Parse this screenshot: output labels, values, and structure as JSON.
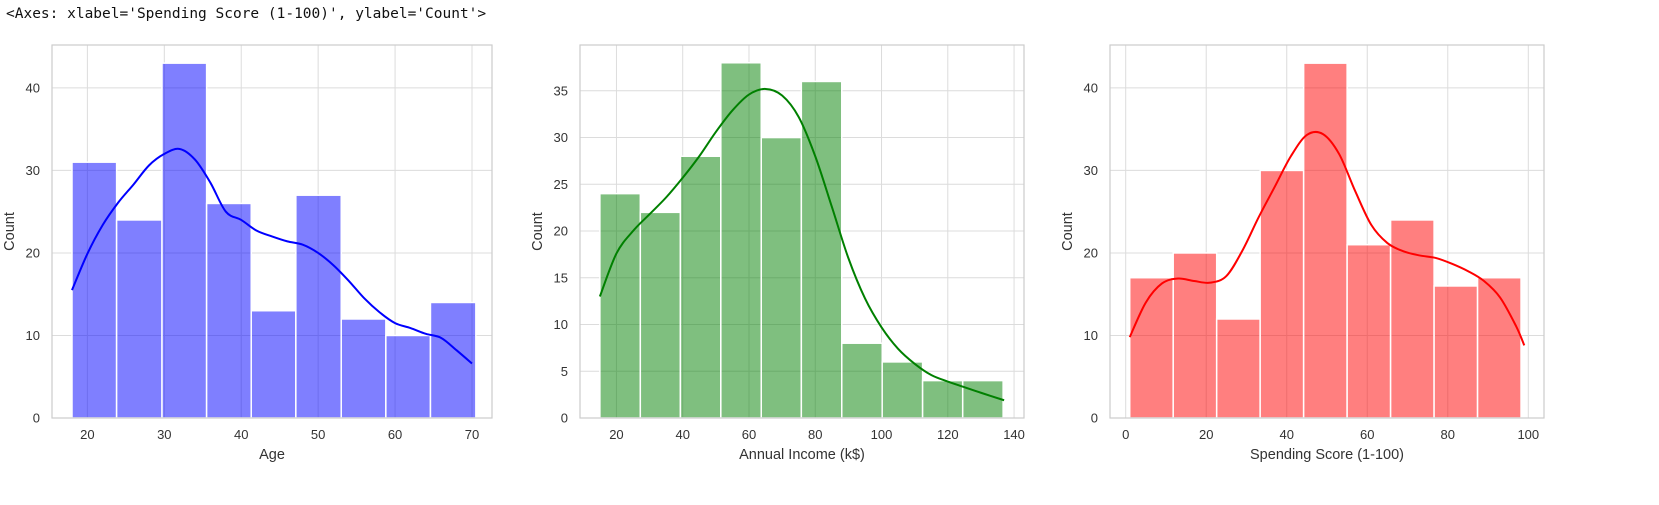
{
  "output_repr": "<Axes: xlabel='Spending Score (1-100)', ylabel='Count'>",
  "chart_data": [
    {
      "type": "bar",
      "subtype": "histogram_with_kde",
      "xlabel": "Age",
      "ylabel": "Count",
      "xlim": [
        15.4,
        72.6
      ],
      "ylim": [
        0,
        45.2
      ],
      "xticks": [
        20,
        30,
        40,
        50,
        60,
        70
      ],
      "yticks": [
        0,
        10,
        20,
        30,
        40
      ],
      "grid": true,
      "bar_color": "#0000ff",
      "kde_color": "#0000ff",
      "bin_edges": [
        18,
        23.8,
        29.7,
        35.5,
        41.3,
        47.1,
        53,
        58.8,
        64.6,
        70.5
      ],
      "values": [
        31,
        24,
        43,
        26,
        13,
        27,
        12,
        10,
        14
      ],
      "kde": {
        "x": [
          18,
          20,
          22,
          24,
          26,
          28,
          30,
          32,
          34,
          36,
          38,
          40,
          42,
          44,
          46,
          48,
          50,
          52,
          54,
          56,
          58,
          60,
          62,
          64,
          66,
          68,
          70
        ],
        "y": [
          15.5,
          19.9,
          23.4,
          26.1,
          28.3,
          30.6,
          32.0,
          32.6,
          31.3,
          28.5,
          25.0,
          24.0,
          22.7,
          22.0,
          21.4,
          21.0,
          20.0,
          18.5,
          16.6,
          14.5,
          12.8,
          11.5,
          10.9,
          10.2,
          9.7,
          8.2,
          6.6
        ]
      }
    },
    {
      "type": "bar",
      "subtype": "histogram_with_kde",
      "xlabel": "Annual Income (k$)",
      "ylabel": "Count",
      "xlim": [
        9.0,
        143.0
      ],
      "ylim": [
        0,
        39.9
      ],
      "xticks": [
        20,
        40,
        60,
        80,
        100,
        120,
        140
      ],
      "yticks": [
        0,
        5,
        10,
        15,
        20,
        25,
        30,
        35
      ],
      "grid": true,
      "bar_color": "#008000",
      "kde_color": "#008000",
      "bin_edges": [
        15,
        27.2,
        39.3,
        51.5,
        63.7,
        75.8,
        88,
        100.2,
        112.4,
        124.5,
        136.7
      ],
      "values": [
        24,
        22,
        28,
        38,
        30,
        36,
        8,
        6,
        4,
        4
      ],
      "kde": {
        "x": [
          15,
          20,
          25,
          30,
          35,
          40,
          45,
          50,
          55,
          60,
          65,
          70,
          75,
          80,
          85,
          90,
          95,
          100,
          105,
          110,
          115,
          120,
          125,
          130,
          137
        ],
        "y": [
          13.0,
          17.6,
          20.0,
          21.8,
          23.6,
          25.7,
          28.0,
          30.6,
          32.9,
          34.6,
          35.2,
          34.5,
          32.2,
          28.0,
          22.6,
          17.1,
          12.8,
          9.7,
          7.4,
          5.8,
          4.6,
          3.9,
          3.3,
          2.7,
          1.9
        ]
      }
    },
    {
      "type": "bar",
      "subtype": "histogram_with_kde",
      "xlabel": "Spending Score (1-100)",
      "ylabel": "Count",
      "xlim": [
        -3.9,
        103.9
      ],
      "ylim": [
        0,
        45.2
      ],
      "xticks": [
        0,
        20,
        40,
        60,
        80,
        100
      ],
      "yticks": [
        0,
        10,
        20,
        30,
        40
      ],
      "grid": true,
      "bar_color": "#ff0000",
      "kde_color": "#ff0000",
      "bin_edges": [
        1,
        11.8,
        22.6,
        33.4,
        44.2,
        55,
        65.8,
        76.6,
        87.4,
        98.2
      ],
      "values": [
        17,
        20,
        12,
        30,
        43,
        21,
        24,
        16,
        17
      ],
      "kde": {
        "x": [
          1,
          5,
          9,
          13,
          17,
          21,
          25,
          29,
          33,
          37,
          41,
          45,
          49,
          53,
          57,
          61,
          65,
          69,
          73,
          77,
          81,
          85,
          89,
          93,
          97,
          99
        ],
        "y": [
          9.8,
          14.0,
          16.3,
          16.9,
          16.6,
          16.4,
          17.2,
          20.3,
          24.3,
          28.0,
          31.7,
          34.3,
          34.4,
          32.0,
          27.5,
          23.4,
          21.2,
          20.2,
          19.7,
          19.4,
          18.7,
          17.8,
          16.6,
          14.6,
          11.1,
          8.8
        ]
      }
    }
  ]
}
